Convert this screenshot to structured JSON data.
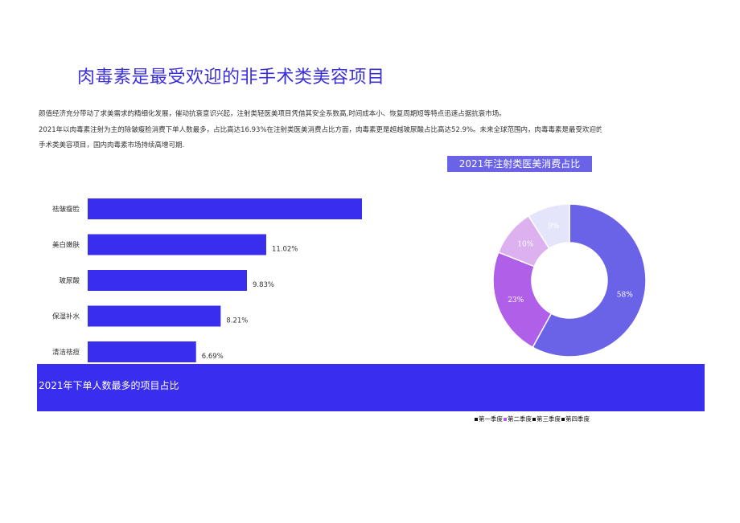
{
  "page": {
    "title": "肉毒素是最受欢迎的非手术类美容项目",
    "paragraphs": [
      "颜值经济充分带动了求美需求的精细化发展，催动抗衰意识兴起，注射类轻医美项目凭借其安全系数高,时间成本小、恢复周期短等特点迅速占据抗衰市场。",
      "2021年以肉毒素注射为主的除皱瘦脸消费下单人数最多，占比高达16.93%在注射类医美消费占比方面，肉毒素更是超越玻尿酸占比高达52.9%。未来全球范围内，肉毒毒素是最受欢迎的非",
      "手术类美容项目，国内肉毒素市场持续高增可期."
    ]
  },
  "chart_data": [
    {
      "type": "bar",
      "orientation": "horizontal",
      "title": "2021年下单人数最多的项目占比",
      "categories": [
        "祛皱瘦脸",
        "美白嫩肤",
        "玻尿酸",
        "保湿补水",
        "清洁祛痘"
      ],
      "values": [
        16.93,
        11.02,
        9.83,
        8.21,
        6.69
      ],
      "value_labels": [
        "",
        "11.02%",
        "9.83%",
        "8.21%",
        "6.69%"
      ],
      "color": "#3a2eee"
    },
    {
      "type": "pie",
      "donut": true,
      "title": "2021年注射类医美消费占比",
      "categories": [
        "第一季度",
        "第二季度",
        "第三季度",
        "第四季度"
      ],
      "values": [
        58,
        23,
        10,
        9
      ],
      "labels": [
        "58%",
        "23%",
        "10%",
        "9%"
      ],
      "colors": [
        "#6a63e8",
        "#b060e8",
        "#ddb0f0",
        "#e4e4fb"
      ]
    }
  ],
  "legend": {
    "items": [
      "第一季度",
      "第二季度",
      "第三季度",
      "第四季度"
    ],
    "colors": [
      "#6a63e8",
      "#b060e8",
      "#ddb0f0",
      "#e4e4fb"
    ]
  }
}
